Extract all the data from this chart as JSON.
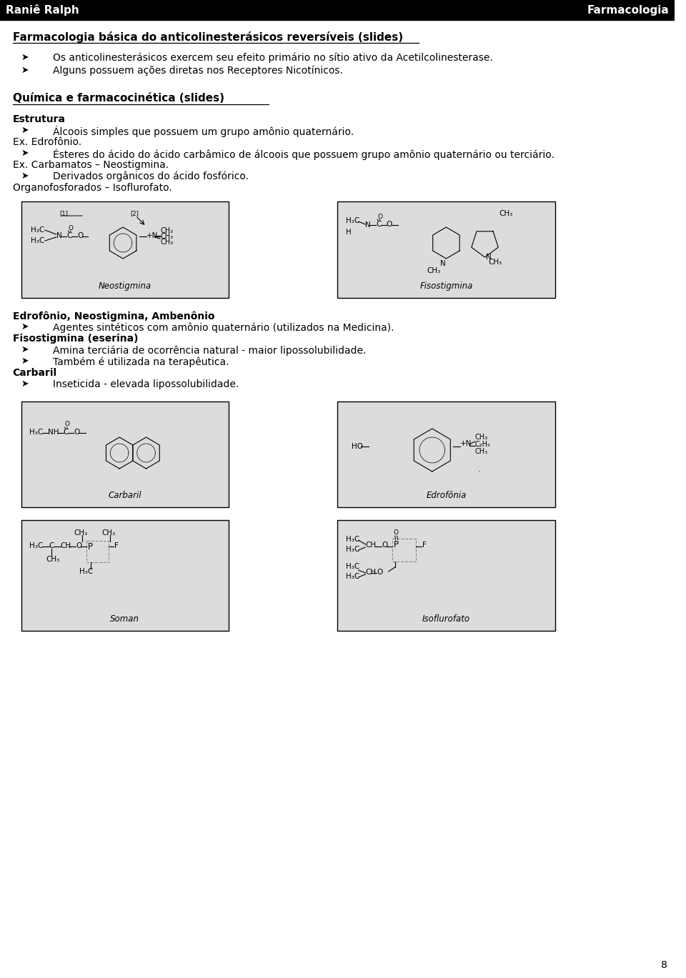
{
  "page_width": 9.6,
  "page_height": 13.69,
  "bg_color": "#ffffff",
  "header_bg": "#000000",
  "header_text_left": "Raniê Ralph",
  "header_text_right": "Farmacologia",
  "header_font_size": 11,
  "title1": "Farmacologia básica do anticolinesterásicos reversíveis (slides)",
  "title1_fontsize": 11,
  "bullets1": [
    "Os anticolinesterásicos exercem seu efeito primário no sítio ativo da Acetilcolinesterase.",
    "Alguns possuem ações diretas nos Receptores Nicotínicos."
  ],
  "title2": "Química e farmacocinética (slides)",
  "title2_fontsize": 11,
  "section_estrutura": "Estrutura",
  "bullets2a": [
    "Álcoois simples que possuem um grupo amônio quaternário."
  ],
  "line2b": "Ex. Edrofônio.",
  "bullets2c": [
    "Ésteres do ácido do ácido carbâmico de álcoois que possuem grupo amônio quaternário ou terciário."
  ],
  "line2d": "Ex. Carbamatos – Neostigmina.",
  "bullets2e": [
    "Derivados orgânicos do ácido fosfórico."
  ],
  "line2f": "Organofosforados – Isoflurofato.",
  "section_ednb": "Edrofônio, Neostigmina, Ambenônio",
  "bullets3": [
    "Agentes sintéticos com amônio quaternário (utilizados na Medicina)."
  ],
  "section_fiso": "Fisostigmina (eserina)",
  "bullets4": [
    "Amina terciária de ocorrência natural - maior lipossolubilidade.",
    "Também é utilizada na terapêutica."
  ],
  "section_carb": "Carbaril",
  "bullets5": [
    "Inseticida - elevada lipossolubilidade."
  ],
  "page_number": "8",
  "img_neostigmina_label": "Neostigmina",
  "img_fisostigmina_label": "Fisostigmina",
  "img_carbaril_label": "Carbaril",
  "img_edrofonio_label": "Edrofônia",
  "img_soman_label": "Soman",
  "img_isoflurofato_label": "Isoflurofato",
  "box_color": "#000000",
  "molecule_bg": "#dcdcdc",
  "text_color": "#000000"
}
